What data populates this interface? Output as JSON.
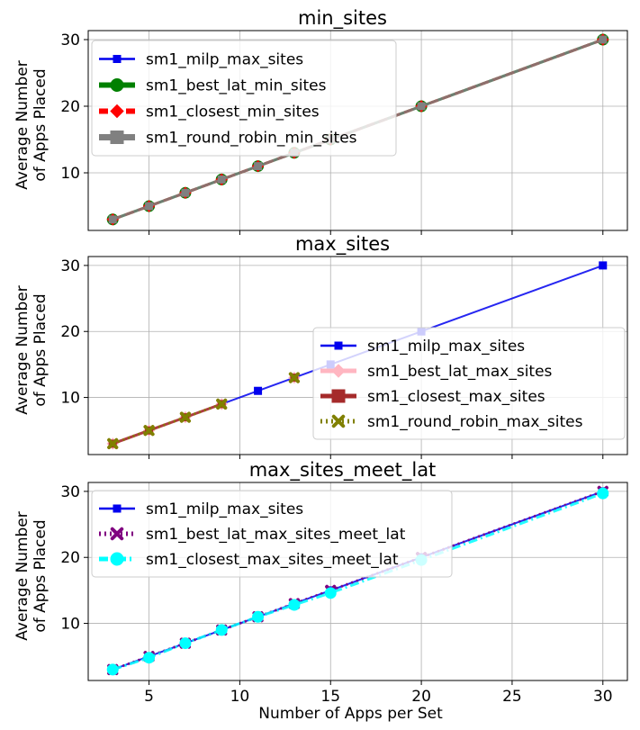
{
  "chart_data": [
    {
      "type": "line",
      "title": "min_sites",
      "xlabel": "",
      "ylabel": "Average Number\nof Apps Placed",
      "x": [
        3,
        5,
        7,
        9,
        11,
        13,
        15,
        20,
        30
      ],
      "xlim": [
        1.65,
        31.35
      ],
      "ylim": [
        1.35,
        31.35
      ],
      "xticks": [
        5,
        10,
        15,
        20,
        25,
        30
      ],
      "yticks": [
        10,
        20,
        30
      ],
      "show_xticklabels": false,
      "grid": true,
      "legend_position": "upper left",
      "series": [
        {
          "name": "sm1_milp_max_sites",
          "values": [
            3,
            5,
            7,
            9,
            11,
            13,
            15,
            20,
            30
          ],
          "color": "#0000ee",
          "marker": "square",
          "dash": "solid"
        },
        {
          "name": "sm1_best_lat_min_sites",
          "values": [
            3,
            5,
            7,
            9,
            11,
            13,
            15,
            20,
            30
          ],
          "color": "#008000",
          "marker": "circle",
          "dash": "solid"
        },
        {
          "name": "sm1_closest_min_sites",
          "values": [
            3,
            5,
            7,
            9,
            11,
            13,
            15,
            20,
            30
          ],
          "color": "#ff0000",
          "marker": "diamond",
          "dash": "dashed"
        },
        {
          "name": "sm1_round_robin_min_sites",
          "values": [
            3,
            5,
            7,
            9,
            11,
            13,
            15,
            20,
            30
          ],
          "color": "#808080",
          "marker": "square",
          "dash": "solid"
        }
      ]
    },
    {
      "type": "line",
      "title": "max_sites",
      "xlabel": "",
      "ylabel": "Average Number\nof Apps Placed",
      "x": [
        3,
        5,
        7,
        9,
        11,
        13,
        15,
        20,
        30
      ],
      "xlim": [
        1.65,
        31.35
      ],
      "ylim": [
        1.35,
        31.35
      ],
      "xticks": [
        5,
        10,
        15,
        20,
        25,
        30
      ],
      "yticks": [
        10,
        20,
        30
      ],
      "show_xticklabels": false,
      "grid": true,
      "legend_position": "lower right",
      "series": [
        {
          "name": "sm1_milp_max_sites",
          "values": [
            3,
            5,
            7,
            9,
            11,
            13,
            15,
            20,
            30
          ],
          "color": "#0000ee",
          "marker": "square",
          "dash": "solid"
        },
        {
          "name": "sm1_best_lat_max_sites",
          "values": [
            3,
            5,
            7,
            9,
            null,
            13,
            null,
            null,
            null
          ],
          "color": "#ffb6c1",
          "marker": "diamond",
          "dash": "solid"
        },
        {
          "name": "sm1_closest_max_sites",
          "values": [
            3,
            5,
            7,
            9,
            null,
            13,
            null,
            null,
            null
          ],
          "color": "#a52a2a",
          "marker": "square",
          "dash": "solid"
        },
        {
          "name": "sm1_round_robin_max_sites",
          "values": [
            3,
            5,
            7,
            9,
            null,
            13,
            null,
            null,
            null
          ],
          "color": "#808000",
          "marker": "x",
          "dash": "dotted"
        }
      ]
    },
    {
      "type": "line",
      "title": "max_sites_meet_lat",
      "xlabel": "Number of Apps per Set",
      "ylabel": "Average Number\nof Apps Placed",
      "x": [
        3,
        5,
        7,
        9,
        11,
        13,
        15,
        20,
        30
      ],
      "xlim": [
        1.65,
        31.35
      ],
      "ylim": [
        1.35,
        31.35
      ],
      "xticks": [
        5,
        10,
        15,
        20,
        25,
        30
      ],
      "yticks": [
        10,
        20,
        30
      ],
      "show_xticklabels": true,
      "grid": true,
      "legend_position": "upper left",
      "series": [
        {
          "name": "sm1_milp_max_sites",
          "values": [
            3,
            5,
            7,
            9,
            11,
            13,
            15,
            20,
            30
          ],
          "color": "#0000ee",
          "marker": "square",
          "dash": "solid"
        },
        {
          "name": "sm1_best_lat_max_sites_meet_lat",
          "values": [
            3,
            5,
            7,
            9,
            11,
            13,
            15,
            20,
            30
          ],
          "color": "#800080",
          "marker": "x",
          "dash": "dotted"
        },
        {
          "name": "sm1_closest_max_sites_meet_lat",
          "values": [
            3,
            4.8,
            7,
            9,
            11,
            12.8,
            14.6,
            19.6,
            29.7
          ],
          "color": "#00ffff",
          "marker": "circle",
          "dash": "dashdot"
        }
      ]
    }
  ]
}
